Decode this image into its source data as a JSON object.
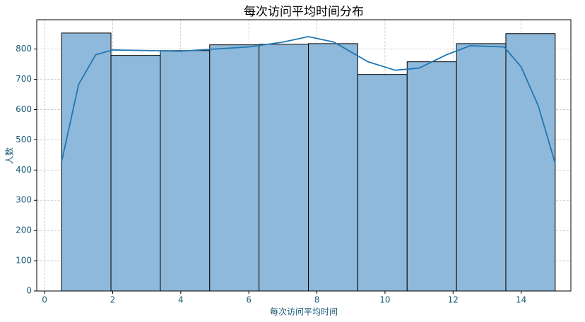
{
  "chart_data": {
    "type": "histogram",
    "title": "每次访问平均时间分布",
    "x_label": "每次访问平均时间",
    "y_label": "人数",
    "bins": [
      0.5,
      1.95,
      3.4,
      4.85,
      6.3,
      7.75,
      9.2,
      10.65,
      12.1,
      13.55,
      15
    ],
    "counts": [
      853,
      779,
      795,
      814,
      816,
      818,
      716,
      758,
      818,
      851
    ],
    "color": "#8fb9da",
    "edgecolor": "#000000",
    "kde": {
      "color": "#1f77b4",
      "x": [
        0.5,
        1,
        1.5,
        2,
        3,
        4,
        5,
        6,
        7,
        7.75,
        8.5,
        9.5,
        10.3,
        11,
        11.8,
        12.5,
        13.5,
        14,
        14.5,
        15
      ],
      "values": [
        427,
        683,
        781,
        797,
        795,
        793,
        800,
        807,
        823,
        841,
        823,
        758,
        730,
        737,
        781,
        811,
        807,
        741,
        613,
        422
      ]
    },
    "xlim": [
      -0.23,
      15.46
    ],
    "xticks": [
      0,
      2,
      4,
      6,
      8,
      10,
      12,
      14
    ],
    "ylim": [
      0,
      897
    ],
    "yticks": [
      0,
      100,
      200,
      300,
      400,
      500,
      600,
      700,
      800
    ],
    "grid": true
  }
}
